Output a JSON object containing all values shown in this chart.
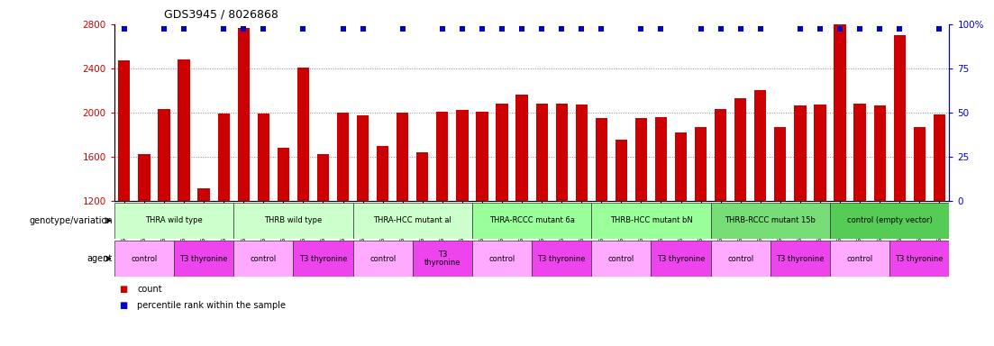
{
  "title": "GDS3945 / 8026868",
  "samples": [
    "GSM721654",
    "GSM721655",
    "GSM721656",
    "GSM721657",
    "GSM721658",
    "GSM721659",
    "GSM721660",
    "GSM721661",
    "GSM721662",
    "GSM721663",
    "GSM721664",
    "GSM721665",
    "GSM721666",
    "GSM721667",
    "GSM721668",
    "GSM721669",
    "GSM721670",
    "GSM721671",
    "GSM721672",
    "GSM721673",
    "GSM721674",
    "GSM721675",
    "GSM721676",
    "GSM721677",
    "GSM721678",
    "GSM721679",
    "GSM721680",
    "GSM721681",
    "GSM721682",
    "GSM721683",
    "GSM721684",
    "GSM721685",
    "GSM721686",
    "GSM721687",
    "GSM721688",
    "GSM721689",
    "GSM721690",
    "GSM721691",
    "GSM721692",
    "GSM721693",
    "GSM721694",
    "GSM721695"
  ],
  "bar_values": [
    2470,
    1620,
    2030,
    2480,
    1310,
    1990,
    2770,
    1990,
    1680,
    2410,
    1620,
    2000,
    1970,
    1700,
    2000,
    1640,
    2010,
    2020,
    2010,
    2080,
    2160,
    2080,
    2080,
    2070,
    1950,
    1750,
    1950,
    1960,
    1820,
    1870,
    2030,
    2130,
    2200,
    1870,
    2060,
    2070,
    2900,
    2080,
    2060,
    2700,
    1870,
    1980
  ],
  "percentile_high": [
    true,
    false,
    true,
    true,
    false,
    true,
    true,
    true,
    false,
    true,
    false,
    true,
    true,
    false,
    true,
    false,
    true,
    true,
    true,
    true,
    true,
    true,
    true,
    true,
    true,
    false,
    true,
    true,
    false,
    true,
    true,
    true,
    true,
    false,
    true,
    true,
    true,
    true,
    true,
    true,
    false,
    true
  ],
  "ymin": 1200,
  "ymax": 2800,
  "yticks_left": [
    1200,
    1600,
    2000,
    2400,
    2800
  ],
  "yticks_right": [
    0,
    25,
    50,
    75,
    100
  ],
  "bar_color": "#cc0000",
  "percentile_color": "#0000cc",
  "grid_color": "#888888",
  "background_color": "#ffffff",
  "genotype_groups": [
    {
      "label": "THRA wild type",
      "start": 0,
      "end": 6,
      "color": "#ccffcc"
    },
    {
      "label": "THRB wild type",
      "start": 6,
      "end": 12,
      "color": "#ccffcc"
    },
    {
      "label": "THRA-HCC mutant al",
      "start": 12,
      "end": 18,
      "color": "#ccffcc"
    },
    {
      "label": "THRA-RCCC mutant 6a",
      "start": 18,
      "end": 24,
      "color": "#99ff99"
    },
    {
      "label": "THRB-HCC mutant bN",
      "start": 24,
      "end": 30,
      "color": "#99ff99"
    },
    {
      "label": "THRB-RCCC mutant 15b",
      "start": 30,
      "end": 36,
      "color": "#77dd77"
    },
    {
      "label": "control (empty vector)",
      "start": 36,
      "end": 42,
      "color": "#55cc55"
    }
  ],
  "agent_groups": [
    {
      "label": "control",
      "start": 0,
      "end": 3,
      "color": "#ffaaff"
    },
    {
      "label": "T3 thyronine",
      "start": 3,
      "end": 6,
      "color": "#ee44ee"
    },
    {
      "label": "control",
      "start": 6,
      "end": 9,
      "color": "#ffaaff"
    },
    {
      "label": "T3 thyronine",
      "start": 9,
      "end": 12,
      "color": "#ee44ee"
    },
    {
      "label": "control",
      "start": 12,
      "end": 15,
      "color": "#ffaaff"
    },
    {
      "label": "T3\nthyronine",
      "start": 15,
      "end": 18,
      "color": "#ee44ee"
    },
    {
      "label": "control",
      "start": 18,
      "end": 21,
      "color": "#ffaaff"
    },
    {
      "label": "T3 thyronine",
      "start": 21,
      "end": 24,
      "color": "#ee44ee"
    },
    {
      "label": "control",
      "start": 24,
      "end": 27,
      "color": "#ffaaff"
    },
    {
      "label": "T3 thyronine",
      "start": 27,
      "end": 30,
      "color": "#ee44ee"
    },
    {
      "label": "control",
      "start": 30,
      "end": 33,
      "color": "#ffaaff"
    },
    {
      "label": "T3 thyronine",
      "start": 33,
      "end": 36,
      "color": "#ee44ee"
    },
    {
      "label": "control",
      "start": 36,
      "end": 39,
      "color": "#ffaaff"
    },
    {
      "label": "T3 thyronine",
      "start": 39,
      "end": 42,
      "color": "#ee44ee"
    }
  ],
  "legend_count_color": "#cc0000",
  "legend_pct_color": "#0000cc",
  "label_geno": "genotype/variation",
  "label_agent": "agent"
}
